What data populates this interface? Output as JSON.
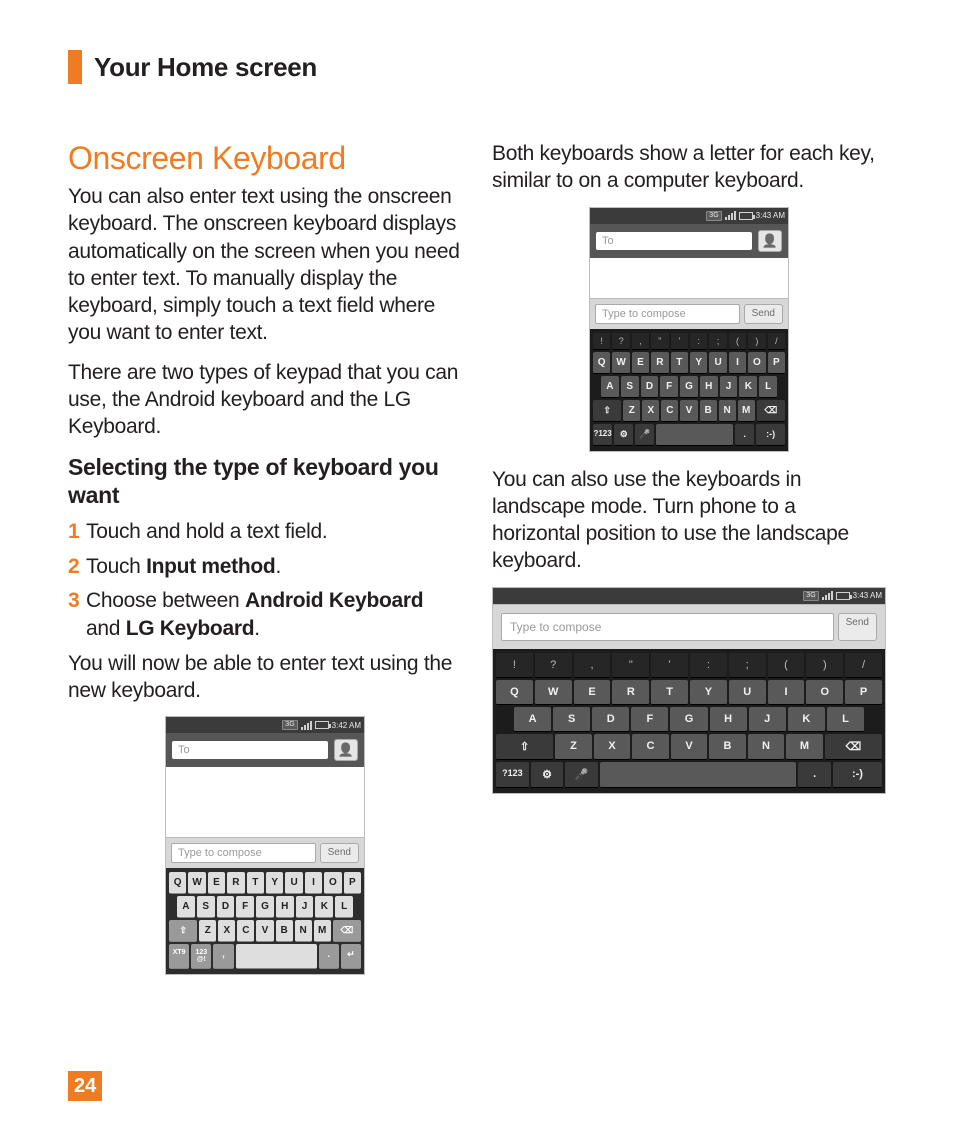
{
  "header": {
    "title": "Your Home screen"
  },
  "pageNumber": "24",
  "colors": {
    "accent": "#ef7c23",
    "text": "#231f20"
  },
  "left": {
    "h2": "Onscreen Keyboard",
    "p1": "You can also enter text using the onscreen keyboard. The onscreen keyboard displays automatically on the screen when you need to enter text. To manually display the keyboard, simply touch a text field where you want to enter text.",
    "p2": "There are two types of keypad that you can use, the Android keyboard and the LG Keyboard.",
    "h3": "Selecting the type of keyboard you want",
    "step1": {
      "n": "1",
      "t": "Touch and hold a text field."
    },
    "step2": {
      "n": "2",
      "t1": "Touch ",
      "b": "Input method",
      "t2": "."
    },
    "step3": {
      "n": "3",
      "t1": "Choose between ",
      "b1": "Android Keyboard",
      "t2": " and ",
      "b2": "LG Keyboard",
      "t3": "."
    },
    "p3": "You will now be able to enter text using the new keyboard."
  },
  "right": {
    "p1": "Both keyboards show a letter for each key, similar to on a computer keyboard.",
    "p2": "You can also use the keyboards in landscape mode. Turn phone to a horizontal position to use the landscape keyboard."
  },
  "phone": {
    "time1": "3:42 AM",
    "time2": "3:43 AM",
    "time3": "3:43 AM",
    "three_g": "3G",
    "to_ph": "To",
    "compose_ph": "Type to compose",
    "send": "Send",
    "row_num": [
      "!",
      "?",
      ",",
      "\"",
      "'",
      ":",
      ";",
      "(",
      ")",
      "/"
    ],
    "row1": [
      "Q",
      "W",
      "E",
      "R",
      "T",
      "Y",
      "U",
      "I",
      "O",
      "P"
    ],
    "row2": [
      "A",
      "S",
      "D",
      "F",
      "G",
      "H",
      "J",
      "K",
      "L"
    ],
    "row3_mid": [
      "Z",
      "X",
      "C",
      "V",
      "B",
      "N",
      "M"
    ],
    "shift": "⇧",
    "bksp": "⌫",
    "fn_123_light": "XT9",
    "fn_sym_light": "123\n@!",
    "fn_123_dark": "?123",
    "gear": "⚙",
    "mic": "🎤",
    "comma": ",",
    "period": ".",
    "smile": ":-)",
    "enter": "↵",
    "contact": "👤"
  }
}
